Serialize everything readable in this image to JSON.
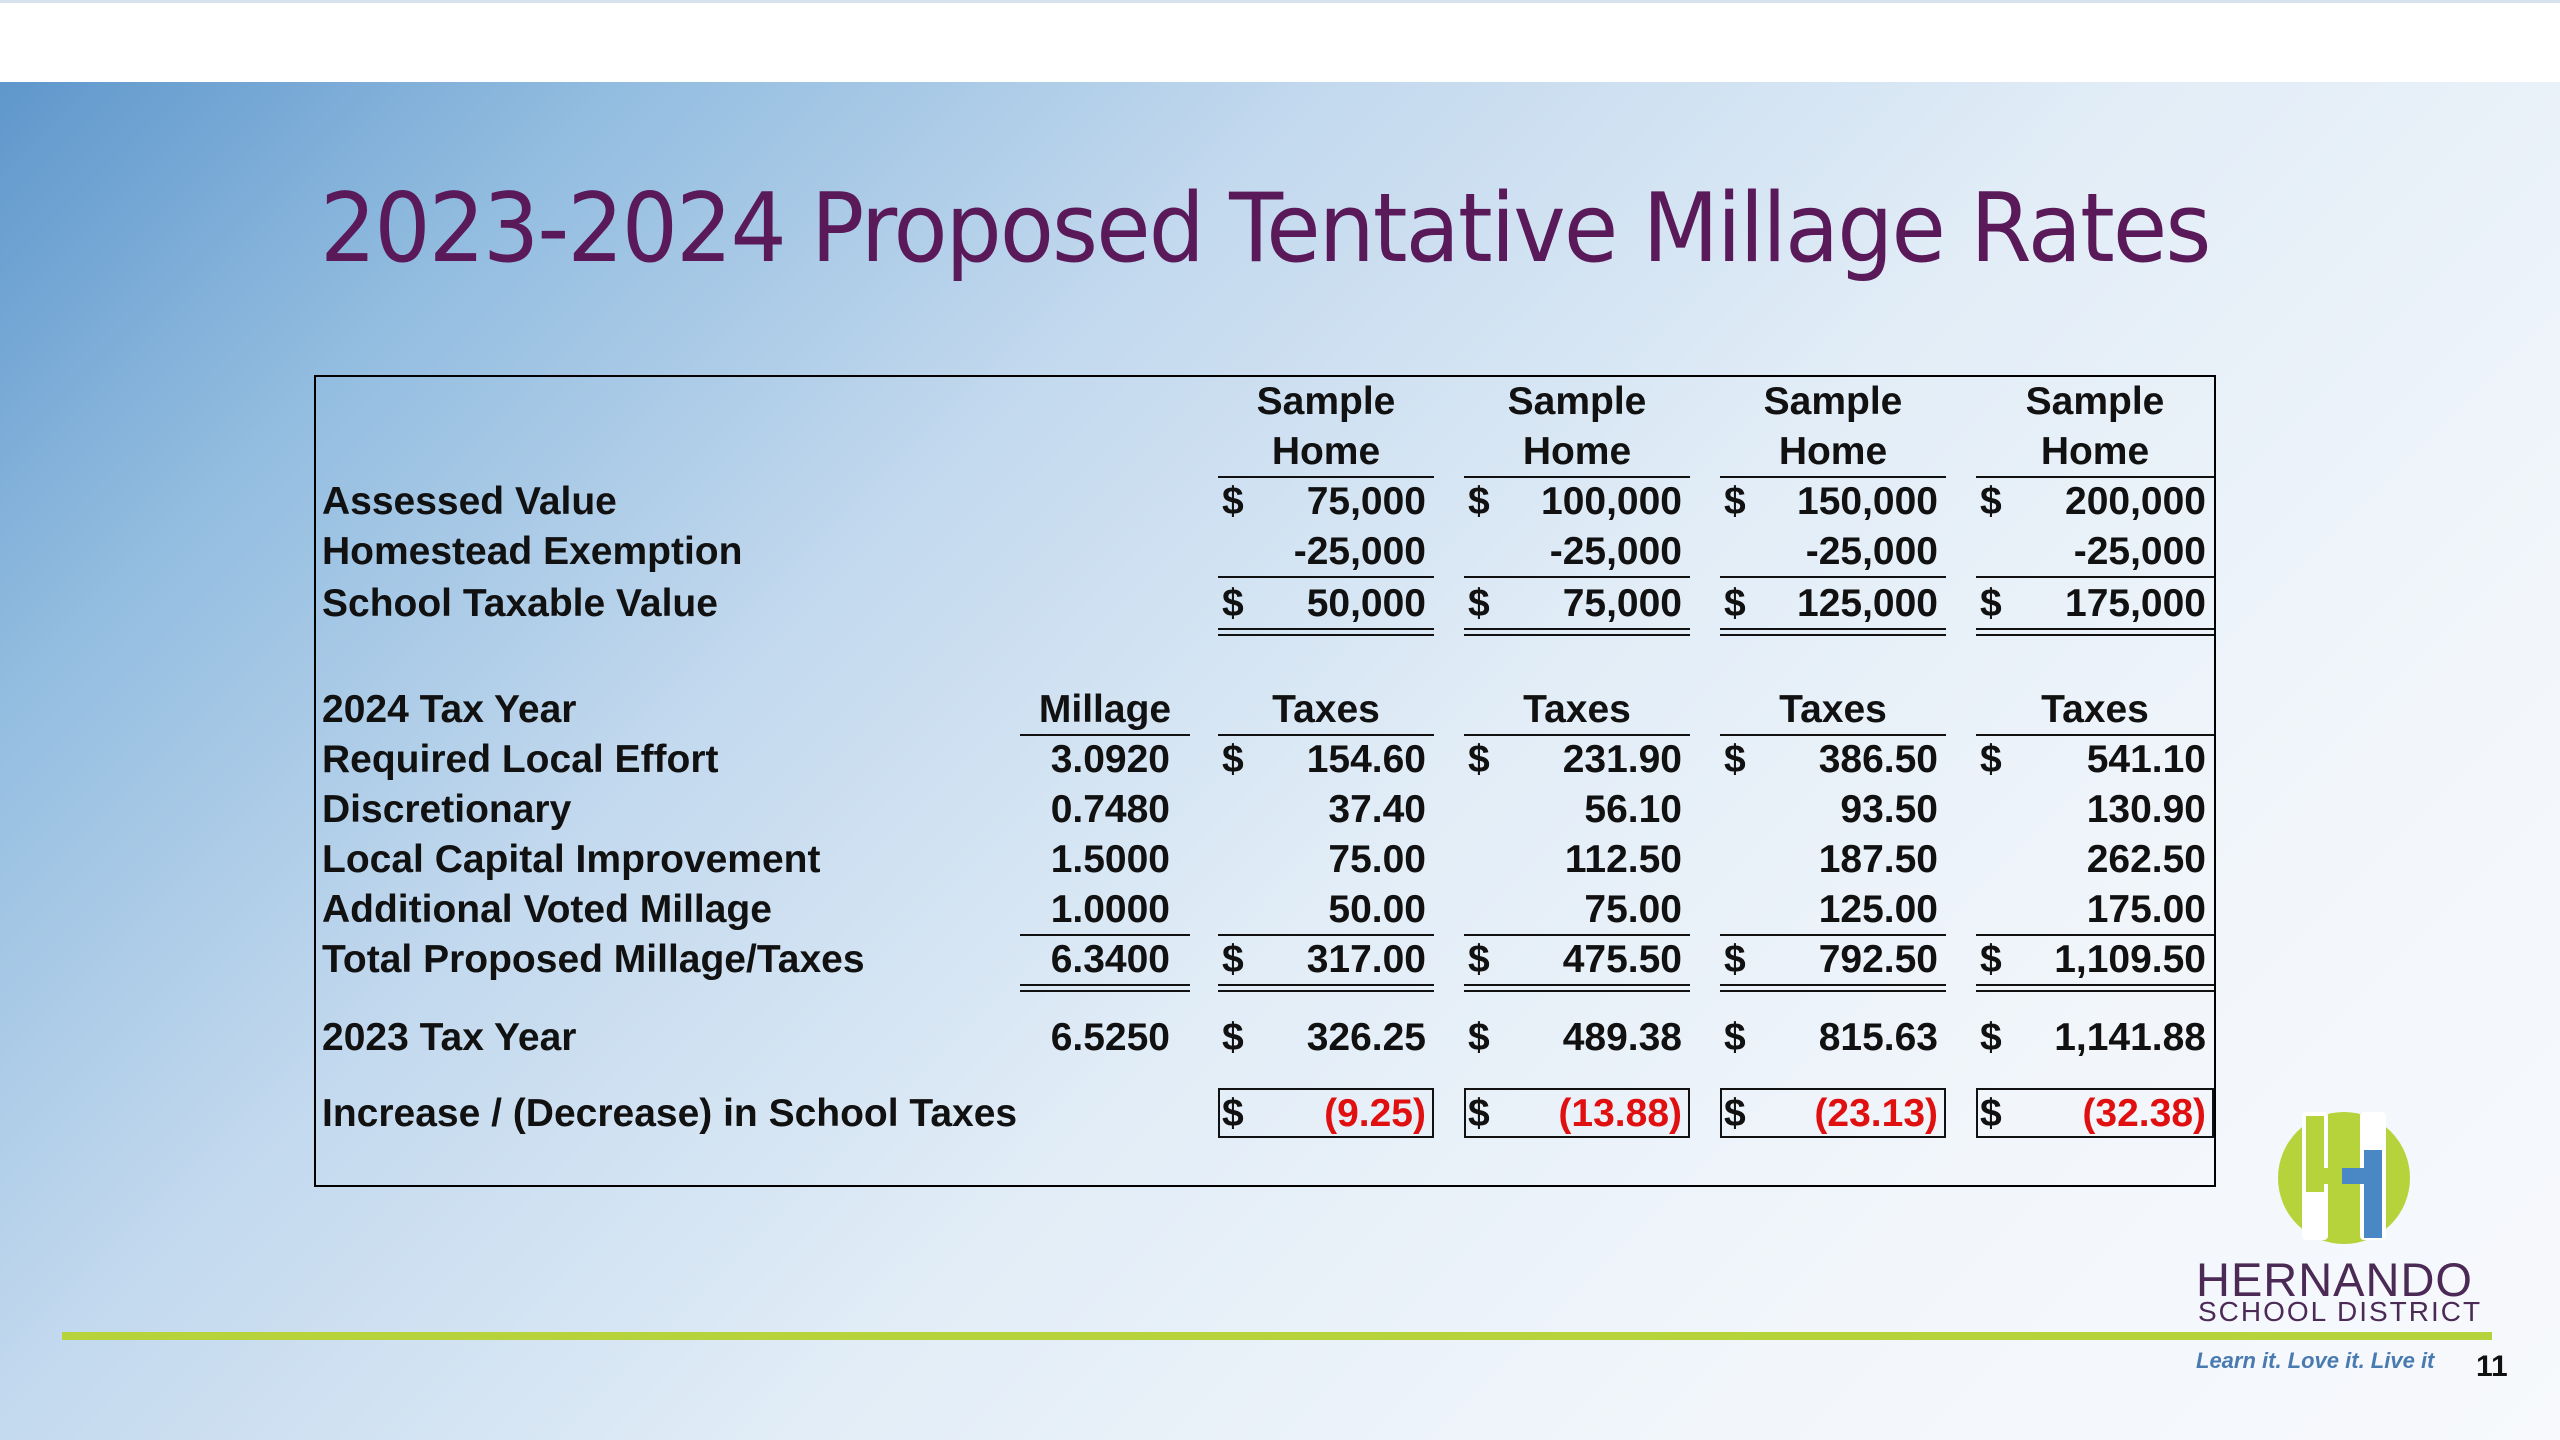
{
  "title": "2023-2024 Proposed Tentative Millage Rates",
  "page_number": "11",
  "colors": {
    "title": "#5a1a5a",
    "negative": "#e01010",
    "accent_green": "#b7d33c",
    "logo_purple": "#4b2b55",
    "logo_blue": "#4a7bb0"
  },
  "table": {
    "col_header_top": "Sample",
    "col_header_bottom": "Home",
    "dollar": "$",
    "assessed": {
      "label": "Assessed Value",
      "values": [
        "75,000",
        "100,000",
        "150,000",
        "200,000"
      ]
    },
    "exemption": {
      "label": "Homestead Exemption",
      "values": [
        "-25,000",
        "-25,000",
        "-25,000",
        "-25,000"
      ]
    },
    "taxable": {
      "label": "School Taxable Value",
      "values": [
        "50,000",
        "75,000",
        "125,000",
        "175,000"
      ]
    },
    "tax_year": {
      "label": "2024 Tax Year",
      "millage_header": "Millage",
      "taxes_header": "Taxes"
    },
    "rle": {
      "label": "Required Local Effort",
      "millage": "3.0920",
      "values": [
        "154.60",
        "231.90",
        "386.50",
        "541.10"
      ]
    },
    "disc": {
      "label": "Discretionary",
      "millage": "0.7480",
      "values": [
        "37.40",
        "56.10",
        "93.50",
        "130.90"
      ]
    },
    "lci": {
      "label": "Local Capital Improvement",
      "millage": "1.5000",
      "values": [
        "75.00",
        "112.50",
        "187.50",
        "262.50"
      ]
    },
    "avm": {
      "label": "Additional Voted Millage",
      "millage": "1.0000",
      "values": [
        "50.00",
        "75.00",
        "125.00",
        "175.00"
      ]
    },
    "total": {
      "label": "Total Proposed Millage/Taxes",
      "millage": "6.3400",
      "values": [
        "317.00",
        "475.50",
        "792.50",
        "1,109.50"
      ]
    },
    "prior": {
      "label": "2023 Tax Year",
      "millage": "6.5250",
      "values": [
        "326.25",
        "489.38",
        "815.63",
        "1,141.88"
      ]
    },
    "change": {
      "label": "Increase / (Decrease) in School Taxes",
      "values": [
        "(9.25)",
        "(13.88)",
        "(23.13)",
        "(32.38)"
      ]
    }
  },
  "logo": {
    "name": "HERNANDO",
    "sub": "SCHOOL DISTRICT",
    "tagline": "Learn it. Love it. Live it"
  }
}
